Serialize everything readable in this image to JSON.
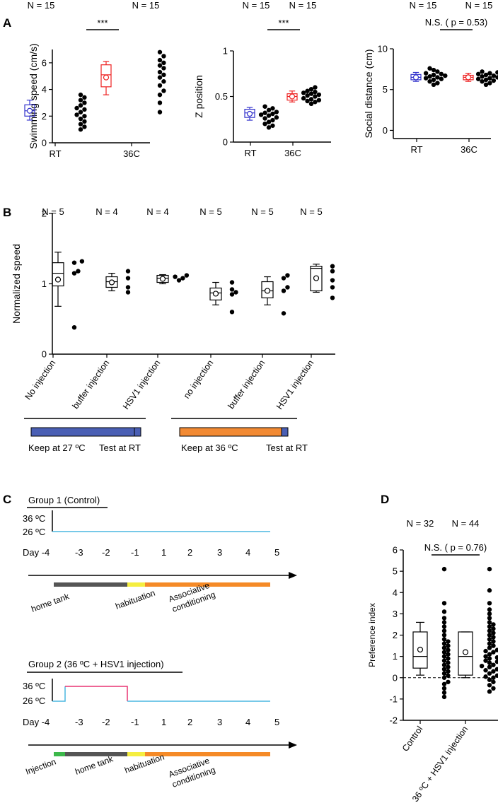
{
  "panel_letters": [
    "A",
    "B",
    "C",
    "D"
  ],
  "chart_data": [
    {
      "id": "A1",
      "type": "scatter",
      "categories": [
        "RT",
        "36C"
      ],
      "ylabel": "Swimming speed (cm/s)",
      "ylim": [
        0,
        7
      ],
      "yticks": [
        0,
        2,
        4,
        6
      ],
      "n_labels": [
        "N = 15",
        "N = 15"
      ],
      "significance": "***",
      "colors": [
        "#3333cc",
        "#ee2222"
      ],
      "box": [
        {
          "min": 1.7,
          "q1": 2.0,
          "median": 2.4,
          "q3": 2.85,
          "max": 3.2,
          "mean": 2.4
        },
        {
          "min": 3.6,
          "q1": 4.2,
          "median": 5.1,
          "q3": 5.85,
          "max": 6.1,
          "mean": 4.9
        }
      ],
      "points": [
        [
          1.0,
          1.2,
          1.4,
          1.6,
          1.8,
          2.0,
          2.1,
          2.3,
          2.5,
          2.6,
          2.8,
          3.0,
          3.2,
          3.4,
          3.6
        ],
        [
          2.3,
          3.0,
          3.6,
          3.9,
          4.3,
          4.6,
          4.9,
          5.1,
          5.3,
          5.6,
          5.8,
          6.0,
          6.2,
          6.5,
          6.8
        ]
      ]
    },
    {
      "id": "A2",
      "type": "scatter",
      "categories": [
        "RT",
        "36C"
      ],
      "ylabel": "Z position",
      "ylim": [
        0,
        1
      ],
      "yticks": [
        0,
        0.5,
        1
      ],
      "n_labels": [
        "N = 15",
        "N = 15"
      ],
      "significance": "***",
      "colors": [
        "#3333cc",
        "#ee2222"
      ],
      "box": [
        {
          "min": 0.24,
          "q1": 0.27,
          "median": 0.32,
          "q3": 0.36,
          "max": 0.38,
          "mean": 0.31
        },
        {
          "min": 0.44,
          "q1": 0.46,
          "median": 0.5,
          "q3": 0.53,
          "max": 0.56,
          "mean": 0.5
        }
      ],
      "points": [
        [
          0.16,
          0.18,
          0.2,
          0.22,
          0.24,
          0.26,
          0.27,
          0.29,
          0.3,
          0.31,
          0.32,
          0.33,
          0.35,
          0.37,
          0.39
        ],
        [
          0.42,
          0.44,
          0.45,
          0.46,
          0.47,
          0.48,
          0.5,
          0.51,
          0.52,
          0.53,
          0.54,
          0.55,
          0.56,
          0.58,
          0.6
        ]
      ]
    },
    {
      "id": "A3",
      "type": "scatter",
      "categories": [
        "RT",
        "36C"
      ],
      "ylabel": "Social distance (cm)",
      "ylim": [
        -1,
        10
      ],
      "yticks": [
        0,
        5,
        10
      ],
      "n_labels": [
        "N = 15",
        "N = 15"
      ],
      "significance": "N.S. ( p = 0.53)",
      "colors": [
        "#3333cc",
        "#ee2222"
      ],
      "box": [
        {
          "min": 6.0,
          "q1": 6.2,
          "median": 6.5,
          "q3": 6.85,
          "max": 7.1,
          "mean": 6.5
        },
        {
          "min": 6.0,
          "q1": 6.2,
          "median": 6.5,
          "q3": 6.75,
          "max": 7.0,
          "mean": 6.5
        }
      ],
      "points": [
        [
          5.6,
          5.8,
          6.0,
          6.2,
          6.3,
          6.4,
          6.5,
          6.6,
          6.7,
          6.8,
          6.9,
          7.0,
          7.2,
          7.4,
          7.6
        ],
        [
          5.6,
          5.8,
          6.0,
          6.1,
          6.2,
          6.3,
          6.4,
          6.5,
          6.6,
          6.7,
          6.8,
          6.9,
          7.0,
          7.1,
          7.2
        ]
      ]
    },
    {
      "id": "B",
      "type": "scatter",
      "categories": [
        "No injection",
        "buffer injection",
        "HSV1 injection",
        "no injection",
        "buffer injection",
        "HSV1 injection"
      ],
      "ylabel": "Normalized speed",
      "ylim": [
        0,
        2
      ],
      "yticks": [
        0,
        1,
        2
      ],
      "n_labels": [
        "N = 5",
        "N = 4",
        "N = 4",
        "N = 5",
        "N = 5",
        "N = 5"
      ],
      "box": [
        {
          "min": 0.68,
          "q1": 0.97,
          "median": 1.15,
          "q3": 1.3,
          "max": 1.45,
          "mean": 1.06
        },
        {
          "min": 0.9,
          "q1": 0.95,
          "median": 1.03,
          "q3": 1.1,
          "max": 1.15,
          "mean": 1.02
        },
        {
          "min": 1.0,
          "q1": 1.02,
          "median": 1.08,
          "q3": 1.12,
          "max": 1.13,
          "mean": 1.07
        },
        {
          "min": 0.7,
          "q1": 0.77,
          "median": 0.87,
          "q3": 0.94,
          "max": 1.02,
          "mean": 0.86
        },
        {
          "min": 0.7,
          "q1": 0.8,
          "median": 0.9,
          "q3": 1.03,
          "max": 1.1,
          "mean": 0.9
        },
        {
          "min": 0.88,
          "q1": 0.9,
          "median": 1.22,
          "q3": 1.25,
          "max": 1.28,
          "mean": 1.08
        }
      ],
      "points": [
        [
          1.3,
          1.32,
          1.15,
          1.18,
          0.38
        ],
        [
          0.88,
          0.95,
          1.08,
          1.18
        ],
        [
          1.05,
          1.08,
          1.1,
          1.12
        ],
        [
          0.6,
          0.85,
          0.88,
          0.92,
          1.02
        ],
        [
          0.58,
          0.9,
          0.95,
          1.08,
          1.12
        ],
        [
          0.8,
          0.95,
          1.05,
          1.18,
          1.25
        ]
      ]
    },
    {
      "id": "D",
      "type": "scatter",
      "categories": [
        "Control",
        "36 ºC + HSV1 injection"
      ],
      "ylabel": "Preference index",
      "ylim": [
        -2,
        6
      ],
      "yticks": [
        -2,
        -1,
        0,
        1,
        2,
        3,
        4,
        5,
        6
      ],
      "n_labels": [
        "N = 32",
        "N = 44"
      ],
      "significance": "N.S. ( p = 0.76)",
      "box": [
        {
          "min": 0.12,
          "q1": 0.45,
          "median": 1.0,
          "q3": 2.15,
          "max": 2.6,
          "mean": 1.32
        },
        {
          "min": 0.0,
          "q1": 0.12,
          "median": 1.0,
          "q3": 2.15,
          "max": 2.15,
          "mean": 1.2
        }
      ],
      "points": [
        [
          -0.9,
          -0.7,
          -0.5,
          -0.3,
          -0.2,
          0,
          0.1,
          0.2,
          0.3,
          0.4,
          0.5,
          0.6,
          0.7,
          0.8,
          0.9,
          1.0,
          1.1,
          1.2,
          1.3,
          1.4,
          1.5,
          1.6,
          1.7,
          1.8,
          2.0,
          2.2,
          2.4,
          2.6,
          2.8,
          3.1,
          3.5,
          5.1
        ],
        [
          -0.65,
          -0.5,
          -0.35,
          -0.2,
          -0.1,
          0,
          0.05,
          0.1,
          0.2,
          0.3,
          0.35,
          0.4,
          0.5,
          0.55,
          0.6,
          0.7,
          0.75,
          0.8,
          0.9,
          0.95,
          1.0,
          1.1,
          1.2,
          1.25,
          1.3,
          1.4,
          1.5,
          1.6,
          1.7,
          1.8,
          1.9,
          2.0,
          2.1,
          2.2,
          2.3,
          2.4,
          2.5,
          2.6,
          2.8,
          3.0,
          3.2,
          3.5,
          4.1,
          5.1
        ]
      ]
    }
  ],
  "panelB_conditions": [
    {
      "keep": "Keep at 27 ºC",
      "test": "Test at RT",
      "bar_color": "#4a5fb4",
      "text_color": "#3a56b0"
    },
    {
      "keep": "Keep at 36 ºC",
      "test": "Test at RT",
      "bar_color": "#f28a33",
      "text_color": "#ee8622"
    }
  ],
  "timeline": {
    "groups": [
      {
        "title": "Group 1 (Control)",
        "temp_labels": [
          "36 ºC",
          "26 ºC"
        ],
        "day_label": "Day -4",
        "days": [
          "-3",
          "-2",
          "-1",
          "1",
          "2",
          "3",
          "4",
          "5"
        ],
        "phases": [
          "home tank",
          "habituation",
          "Associative\nconditioning"
        ]
      },
      {
        "title": "Group 2 (36 ºC + HSV1 injection)",
        "temp_labels": [
          "36 ºC",
          "26 ºC"
        ],
        "day_label": "Day -4",
        "days": [
          "-3",
          "-2",
          "-1",
          "1",
          "2",
          "3",
          "4",
          "5"
        ],
        "phases": [
          "Injection",
          "home tank",
          "habituation",
          "Associative\nconditioning"
        ]
      }
    ],
    "colors": {
      "low_temp": "#4ab7e0",
      "high_temp": "#e83372",
      "home_tank": "#555555",
      "habituation": "#f5ee40",
      "conditioning": "#f58a27",
      "injection": "#3cb84a"
    }
  }
}
